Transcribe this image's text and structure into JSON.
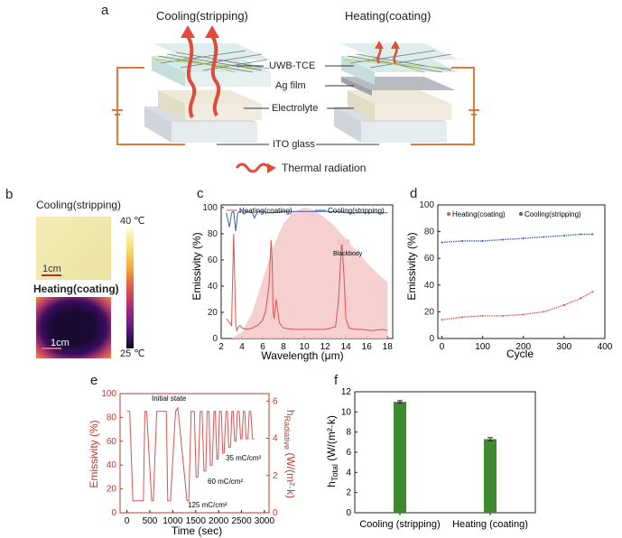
{
  "panel_a": {
    "label": "a",
    "left_title": "Cooling(stripping)",
    "right_title": "Heating(coating)",
    "layers": [
      "UWB-TCE",
      "Ag film",
      "Electrolyte",
      "ITO glass"
    ],
    "legend": "Thermal radiation"
  },
  "panel_b": {
    "label": "b",
    "top_title": "Cooling(stripping)",
    "bottom_title": "Heating(coating)",
    "scale_top": "1cm",
    "scale_bottom": "1cm",
    "colorbar_max": "40 ℃",
    "colorbar_min": "25 ℃"
  },
  "chart_data": [
    {
      "panel": "c",
      "type": "line",
      "xlabel": "Wavelength (μm)",
      "ylabel": "Emissivity (%)",
      "xlim": [
        2,
        18.5
      ],
      "ylim": [
        0,
        102
      ],
      "xticks": [
        2,
        4,
        6,
        8,
        10,
        12,
        14,
        16,
        18
      ],
      "yticks": [
        0,
        20,
        40,
        60,
        80,
        100
      ],
      "legend": [
        "Heating(coating)",
        "Cooling(stripping)"
      ],
      "blackbody_label": "Blackbody",
      "series": [
        {
          "name": "Heating(coating)",
          "color": "#d9534f",
          "x": [
            2.5,
            3.0,
            3.2,
            3.4,
            3.5,
            3.6,
            3.8,
            4.0,
            4.5,
            5.0,
            5.5,
            6.0,
            6.3,
            6.6,
            6.8,
            6.9,
            7.0,
            7.1,
            7.3,
            7.6,
            8.0,
            9.0,
            10.0,
            11.0,
            12.0,
            13.0,
            13.3,
            13.6,
            13.8,
            14.0,
            14.3,
            14.8,
            15.5,
            16.5,
            17.5,
            18.0
          ],
          "y": [
            15,
            10,
            80,
            12,
            6,
            8,
            10,
            8,
            7,
            8,
            10,
            14,
            22,
            40,
            75,
            60,
            20,
            15,
            30,
            12,
            8,
            7,
            7,
            7,
            7,
            9,
            30,
            75,
            50,
            15,
            8,
            7,
            7,
            6,
            7,
            6
          ]
        },
        {
          "name": "Cooling(stripping)",
          "color": "#3f5fa6",
          "x": [
            2.5,
            2.8,
            3.0,
            3.2,
            3.4,
            3.6,
            3.8,
            4.0,
            4.2,
            4.5,
            5.0,
            5.2,
            5.5,
            6.0,
            6.5,
            7.0,
            8.0,
            9.0,
            10.0,
            11.0,
            12.0,
            13.0,
            14.0,
            15.0,
            16.0,
            17.0,
            18.0
          ],
          "y": [
            96,
            85,
            96,
            97,
            82,
            96,
            97,
            97,
            95,
            97,
            96,
            92,
            97,
            97,
            96,
            96,
            97,
            97,
            97,
            97,
            97,
            97,
            96,
            96,
            96,
            96,
            96
          ]
        },
        {
          "name": "Blackbody",
          "color": "#f4c7c7",
          "x": [
            3,
            4,
            5,
            6,
            7,
            8,
            9,
            10,
            11,
            12,
            13,
            14,
            15,
            16,
            17,
            18
          ],
          "y": [
            0,
            5,
            20,
            45,
            70,
            88,
            97,
            100,
            98,
            92,
            85,
            76,
            67,
            58,
            50,
            43
          ]
        }
      ]
    },
    {
      "panel": "d",
      "type": "scatter",
      "xlabel": "Cycle",
      "ylabel": "Emissivity (%)",
      "xlim": [
        -10,
        400
      ],
      "ylim": [
        0,
        100
      ],
      "xticks": [
        0,
        100,
        200,
        300,
        400
      ],
      "yticks": [
        0,
        20,
        40,
        60,
        80,
        100
      ],
      "series": [
        {
          "name": "Heating(coating)",
          "color": "#d9534f",
          "x": [
            0,
            50,
            100,
            150,
            200,
            250,
            300,
            340,
            370
          ],
          "y": [
            14,
            16,
            17,
            17,
            18,
            20,
            25,
            30,
            35
          ]
        },
        {
          "name": "Cooling(stripping)",
          "color": "#3f5fa6",
          "x": [
            0,
            50,
            100,
            150,
            200,
            250,
            300,
            340,
            370
          ],
          "y": [
            72,
            73,
            73,
            74,
            75,
            76,
            77,
            78,
            78
          ]
        }
      ]
    },
    {
      "panel": "e",
      "type": "line",
      "xlabel": "Time (sec)",
      "ylabel": "Emissivity (%)",
      "ylabel_right": "h Radiative (W/(m²·k)",
      "ylabel_right_main": "h",
      "ylabel_right_sub": "Radiative",
      "ylabel_right_unit": " (W/(m²·k)",
      "xlim": [
        -150,
        3100
      ],
      "ylim": [
        0,
        100
      ],
      "ylim_right": [
        0,
        6.4
      ],
      "xticks": [
        0,
        500,
        1000,
        1500,
        2000,
        2500,
        3000
      ],
      "yticks": [
        0,
        20,
        40,
        60,
        80,
        100
      ],
      "yticks_right": [
        0,
        2,
        4,
        6
      ],
      "annotations": [
        "Initial state",
        "35 mC/cm²",
        "60 mC/cm²",
        "125 mC/cm²"
      ],
      "series": [
        {
          "name": "Emissivity",
          "color": "#d9534f",
          "x": [
            0,
            60,
            130,
            360,
            390,
            430,
            540,
            575,
            650,
            860,
            890,
            950,
            1060,
            1110,
            1310,
            1350,
            1400,
            1470,
            1510,
            1550,
            1600,
            1640,
            1680,
            1720,
            1750,
            1790,
            1820,
            1860,
            1900,
            1930,
            1960,
            1990,
            2020,
            2060,
            2090,
            2120,
            2160,
            2190,
            2220,
            2260,
            2290,
            2320,
            2350,
            2380,
            2410,
            2450,
            2480,
            2510,
            2540,
            2570,
            2600,
            2640,
            2670,
            2700,
            2740,
            2780
          ],
          "y": [
            85,
            85,
            10,
            10,
            85,
            85,
            10,
            10,
            85,
            85,
            10,
            10,
            85,
            88,
            10,
            10,
            85,
            85,
            30,
            30,
            85,
            85,
            35,
            35,
            85,
            85,
            40,
            40,
            85,
            85,
            45,
            45,
            85,
            85,
            50,
            50,
            85,
            85,
            55,
            55,
            85,
            85,
            60,
            60,
            85,
            85,
            62,
            62,
            85,
            85,
            62,
            62,
            85,
            85,
            62,
            62
          ]
        }
      ]
    },
    {
      "panel": "f",
      "type": "bar",
      "categories": [
        "Cooling (stripping)",
        "Heating (coating)"
      ],
      "values": [
        11.0,
        7.3
      ],
      "errors": [
        0.12,
        0.15
      ],
      "ylabel": "h Total (W/(m²·k)",
      "ylabel_main": "h",
      "ylabel_sub": "Total",
      "ylabel_unit": " (W/(m²·k)",
      "ylim": [
        0,
        12
      ],
      "yticks": [
        0,
        2,
        4,
        6,
        8,
        10,
        12
      ],
      "color": "#3f8a2f"
    }
  ],
  "panel_labels": {
    "c": "c",
    "d": "d",
    "e": "e",
    "f": "f"
  }
}
